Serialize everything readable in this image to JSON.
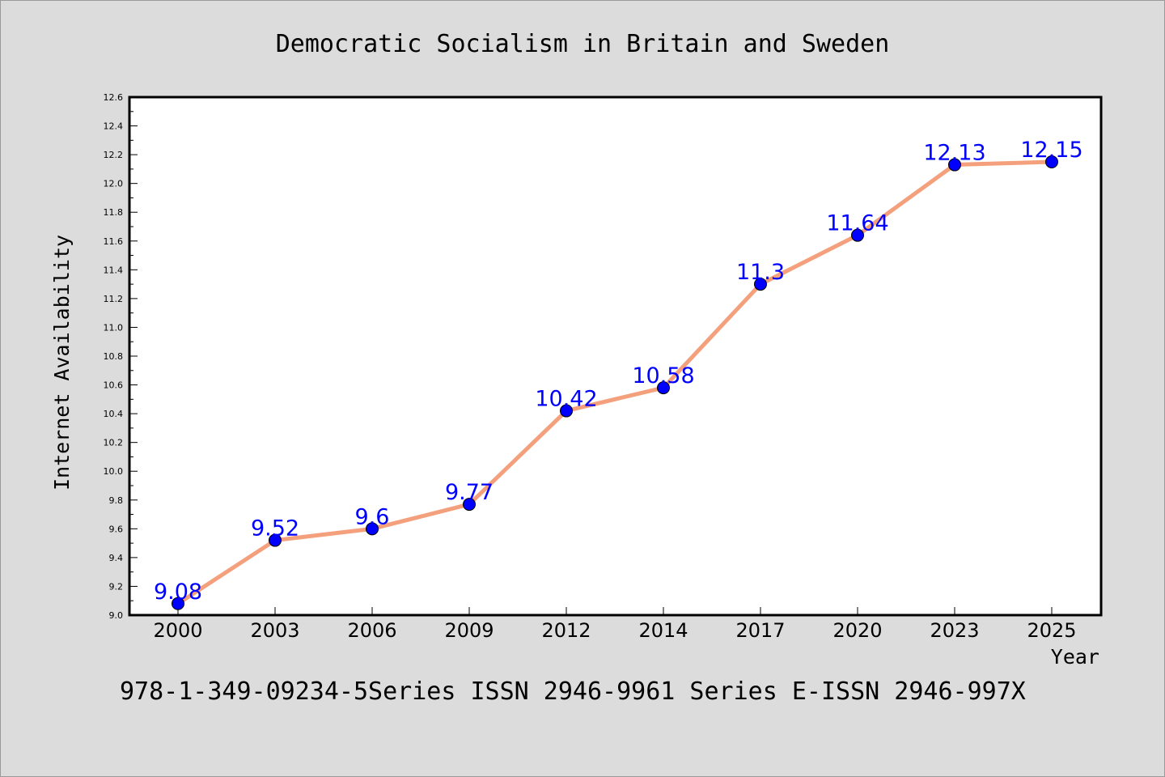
{
  "chart_data": {
    "type": "line",
    "title": "Democratic Socialism in Britain and Sweden",
    "xlabel": "Year",
    "ylabel": "Internet Availability",
    "x": [
      "2000",
      "2003",
      "2006",
      "2009",
      "2012",
      "2014",
      "2017",
      "2020",
      "2023",
      "2025"
    ],
    "series": [
      {
        "values": [
          9.08,
          9.52,
          9.6,
          9.77,
          10.42,
          10.58,
          11.3,
          11.64,
          12.13,
          12.15
        ],
        "labels": [
          "9.08",
          "9.52",
          "9.6",
          "9.77",
          "10.42",
          "10.58",
          "11.3",
          "11.64",
          "12.13",
          "12.15"
        ],
        "line_color": "#f4a07c",
        "marker_color": "#0000ff",
        "label_color": "#0000ff"
      }
    ],
    "ylim": [
      9.0,
      12.6
    ],
    "yticks": [
      "9.0",
      "9.2",
      "9.4",
      "9.6",
      "9.8",
      "10.0",
      "10.2",
      "10.4",
      "10.6",
      "10.8",
      "11.0",
      "11.2",
      "11.4",
      "11.6",
      "11.8",
      "12.0",
      "12.2",
      "12.4",
      "12.6"
    ],
    "grid": false,
    "legend": "none"
  },
  "footer": {
    "text": "978-1-349-09234-5Series ISSN 2946-9961 Series E-ISSN 2946-997X"
  }
}
